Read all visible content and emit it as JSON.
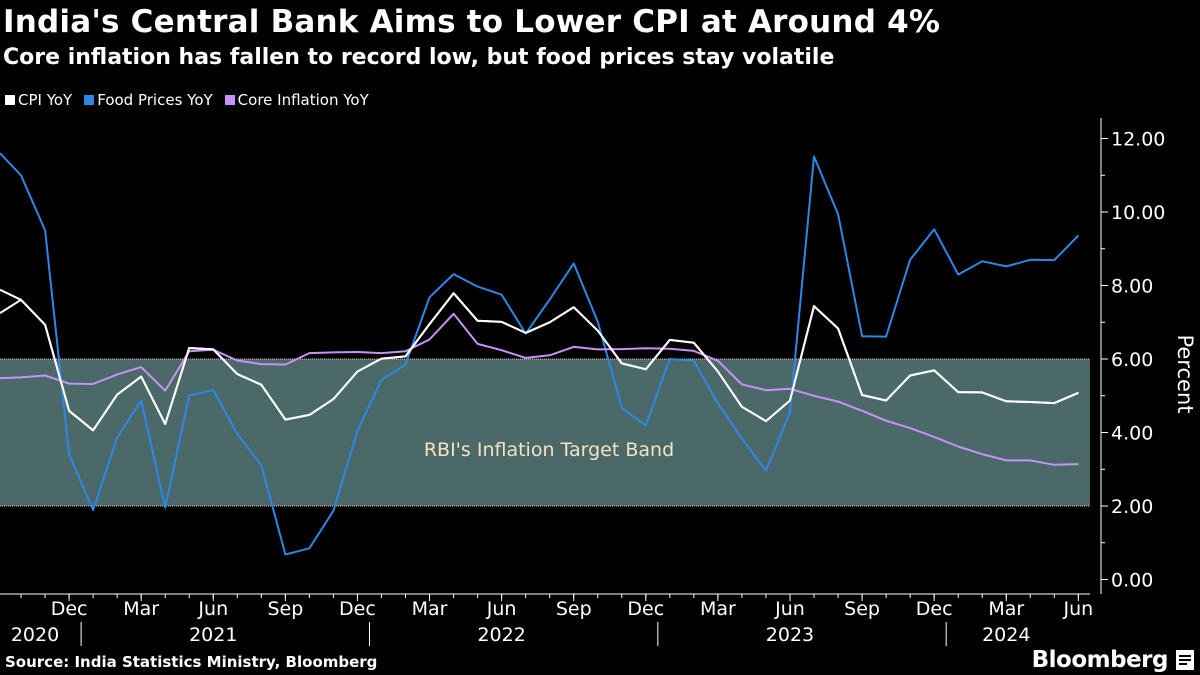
{
  "header": {
    "title": "India's Central Bank Aims to Lower CPI at Around 4%",
    "subtitle": "Core inflation has fallen to record low, but food prices stay volatile"
  },
  "legend": [
    {
      "label": "CPI YoY",
      "color": "#ffffff"
    },
    {
      "label": "Food Prices YoY",
      "color": "#2d87e6"
    },
    {
      "label": "Core Inflation YoY",
      "color": "#c792f5"
    }
  ],
  "footer": {
    "source": "Source: India Statistics Ministry, Bloomberg",
    "brand": "Bloomberg",
    "brand_icon": "bloomberg-terminal-icon"
  },
  "chart_data": {
    "type": "line",
    "title": "India's Central Bank Aims to Lower CPI at Around 4%",
    "subtitle": "Core inflation has fallen to record low, but food prices stay volatile",
    "xlabel": "",
    "ylabel": "Percent",
    "ylim": [
      0,
      12
    ],
    "yticks": [
      0,
      2,
      4,
      6,
      8,
      10,
      12
    ],
    "ytick_labels": [
      "0.00",
      "2.00",
      "4.00",
      "6.00",
      "8.00",
      "10.00",
      "12.00"
    ],
    "y_axis_position": "right",
    "grid": false,
    "legend_position": "top-left",
    "x": [
      "2020-10",
      "2020-11",
      "2020-12",
      "2021-01",
      "2021-02",
      "2021-03",
      "2021-04",
      "2021-05",
      "2021-06",
      "2021-07",
      "2021-08",
      "2021-09",
      "2021-10",
      "2021-11",
      "2021-12",
      "2022-01",
      "2022-02",
      "2022-03",
      "2022-04",
      "2022-05",
      "2022-06",
      "2022-07",
      "2022-08",
      "2022-09",
      "2022-10",
      "2022-11",
      "2022-12",
      "2023-01",
      "2023-02",
      "2023-03",
      "2023-04",
      "2023-05",
      "2023-06",
      "2023-07",
      "2023-08",
      "2023-09",
      "2023-10",
      "2023-11",
      "2023-12",
      "2024-01",
      "2024-02",
      "2024-03",
      "2024-04",
      "2024-05",
      "2024-06"
    ],
    "month_ticks": [
      {
        "label": "Dec",
        "x": "2020-12"
      },
      {
        "label": "Mar",
        "x": "2021-03"
      },
      {
        "label": "Jun",
        "x": "2021-06"
      },
      {
        "label": "Sep",
        "x": "2021-09"
      },
      {
        "label": "Dec",
        "x": "2021-12"
      },
      {
        "label": "Mar",
        "x": "2022-03"
      },
      {
        "label": "Jun",
        "x": "2022-06"
      },
      {
        "label": "Sep",
        "x": "2022-09"
      },
      {
        "label": "Dec",
        "x": "2022-12"
      },
      {
        "label": "Mar",
        "x": "2023-03"
      },
      {
        "label": "Jun",
        "x": "2023-06"
      },
      {
        "label": "Sep",
        "x": "2023-09"
      },
      {
        "label": "Dec",
        "x": "2023-12"
      },
      {
        "label": "Mar",
        "x": "2024-03"
      },
      {
        "label": "Jun",
        "x": "2024-06"
      }
    ],
    "year_labels": [
      {
        "label": "2020",
        "x": "2020-11"
      },
      {
        "label": "2021",
        "x": "2021-06"
      },
      {
        "label": "2022",
        "x": "2022-06"
      },
      {
        "label": "2023",
        "x": "2023-06"
      },
      {
        "label": "2024",
        "x": "2024-03"
      }
    ],
    "year_boundaries": [
      "2021-01",
      "2022-01",
      "2023-01",
      "2024-01"
    ],
    "band": {
      "label": "RBI's Inflation Target Band",
      "low": 2,
      "high": 6,
      "color": "#4b6968"
    },
    "series": [
      {
        "name": "CPI YoY",
        "color": "#ffffff",
        "values": [
          7.61,
          6.93,
          4.59,
          4.06,
          5.03,
          5.52,
          4.23,
          6.3,
          6.26,
          5.59,
          5.3,
          4.35,
          4.48,
          4.91,
          5.66,
          6.01,
          6.07,
          6.95,
          7.79,
          7.04,
          7.01,
          6.71,
          7.0,
          7.41,
          6.77,
          5.88,
          5.72,
          6.52,
          6.44,
          5.66,
          4.7,
          4.31,
          4.87,
          7.44,
          6.83,
          5.02,
          4.87,
          5.55,
          5.69,
          5.1,
          5.09,
          4.85,
          4.83,
          4.8,
          5.08
        ]
      },
      {
        "name": "Food Prices YoY",
        "color": "#2d87e6",
        "values": [
          11.0,
          9.5,
          3.41,
          1.89,
          3.87,
          4.87,
          1.96,
          5.01,
          5.15,
          3.96,
          3.11,
          0.68,
          0.85,
          1.87,
          4.05,
          5.43,
          5.85,
          7.68,
          8.31,
          7.97,
          7.75,
          6.69,
          7.62,
          8.6,
          7.01,
          4.67,
          4.19,
          6.0,
          5.95,
          4.79,
          3.84,
          2.96,
          4.55,
          11.51,
          9.94,
          6.62,
          6.61,
          8.7,
          9.53,
          8.3,
          8.66,
          8.52,
          8.7,
          8.69,
          9.36
        ]
      },
      {
        "name": "Core Inflation YoY",
        "color": "#c792f5",
        "values": [
          5.5,
          5.55,
          5.33,
          5.32,
          5.58,
          5.78,
          5.14,
          6.21,
          6.25,
          5.96,
          5.86,
          5.85,
          6.16,
          6.18,
          6.19,
          6.16,
          6.21,
          6.53,
          7.23,
          6.41,
          6.24,
          6.03,
          6.1,
          6.33,
          6.26,
          6.27,
          6.29,
          6.28,
          6.22,
          5.95,
          5.31,
          5.15,
          5.19,
          5.0,
          4.84,
          4.59,
          4.32,
          4.12,
          3.88,
          3.62,
          3.41,
          3.24,
          3.24,
          3.12,
          3.14
        ]
      }
    ]
  }
}
